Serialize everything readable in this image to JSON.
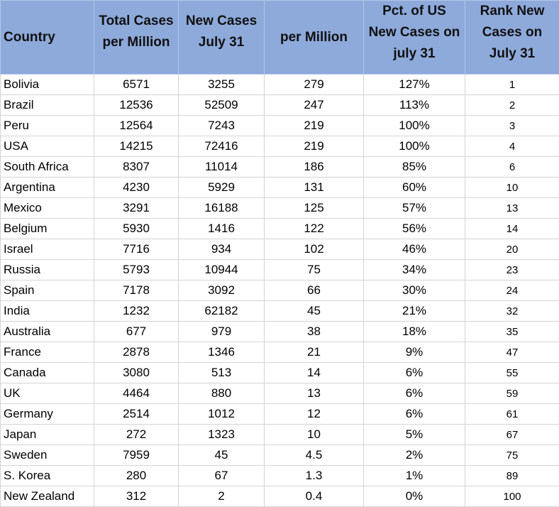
{
  "table": {
    "headers": [
      [
        "Country"
      ],
      [
        "Total Cases",
        "per Million"
      ],
      [
        "New Cases",
        "July 31"
      ],
      [
        "per Million"
      ],
      [
        "Pct. of US",
        "New Cases on",
        "july 31"
      ],
      [
        "Rank New",
        "Cases on",
        "July 31"
      ]
    ],
    "rows": [
      [
        "Bolivia",
        "6571",
        "3255",
        "279",
        "127%",
        "1"
      ],
      [
        "Brazil",
        "12536",
        "52509",
        "247",
        "113%",
        "2"
      ],
      [
        "Peru",
        "12564",
        "7243",
        "219",
        "100%",
        "3"
      ],
      [
        "USA",
        "14215",
        "72416",
        "219",
        "100%",
        "4"
      ],
      [
        "South Africa",
        "8307",
        "11014",
        "186",
        "85%",
        "6"
      ],
      [
        "Argentina",
        "4230",
        "5929",
        "131",
        "60%",
        "10"
      ],
      [
        "Mexico",
        "3291",
        "16188",
        "125",
        "57%",
        "13"
      ],
      [
        "Belgium",
        "5930",
        "1416",
        "122",
        "56%",
        "14"
      ],
      [
        "Israel",
        "7716",
        "934",
        "102",
        "46%",
        "20"
      ],
      [
        "Russia",
        "5793",
        "10944",
        "75",
        "34%",
        "23"
      ],
      [
        "Spain",
        "7178",
        "3092",
        "66",
        "30%",
        "24"
      ],
      [
        "India",
        "1232",
        "62182",
        "45",
        "21%",
        "32"
      ],
      [
        "Australia",
        "677",
        "979",
        "38",
        "18%",
        "35"
      ],
      [
        "France",
        "2878",
        "1346",
        "21",
        "9%",
        "47"
      ],
      [
        "Canada",
        "3080",
        "513",
        "14",
        "6%",
        "55"
      ],
      [
        "UK",
        "4464",
        "880",
        "13",
        "6%",
        "59"
      ],
      [
        "Germany",
        "2514",
        "1012",
        "12",
        "6%",
        "61"
      ],
      [
        "Japan",
        "272",
        "1323",
        "10",
        "5%",
        "67"
      ],
      [
        "Sweden",
        "7959",
        "45",
        "4.5",
        "2%",
        "75"
      ],
      [
        "S. Korea",
        "280",
        "67",
        "1.3",
        "1%",
        "89"
      ],
      [
        "New Zealand",
        "312",
        "2",
        "0.4",
        "0%",
        "100"
      ]
    ]
  },
  "colors": {
    "header_background": "#8eaadb",
    "grid_line": "#d4d4d4"
  }
}
